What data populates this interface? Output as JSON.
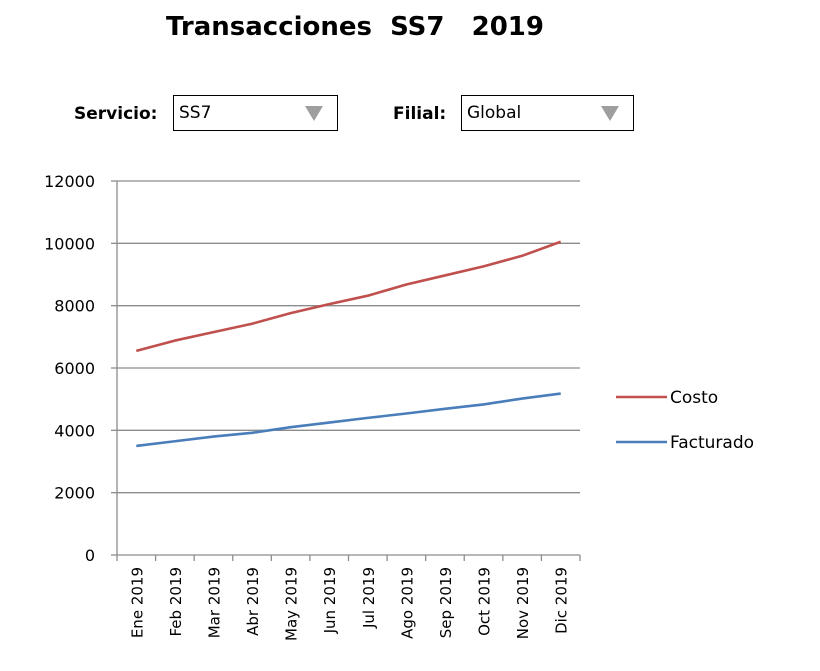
{
  "header": {
    "title": "Transacciones  SS7   2019"
  },
  "filters": {
    "servicio": {
      "label": "Servicio:",
      "value": "SS7",
      "arrow_icon": "triangle-down-icon"
    },
    "filial": {
      "label": "Filial:",
      "value": "Global",
      "arrow_icon": "triangle-down-icon"
    }
  },
  "chart_data": {
    "type": "line",
    "categories": [
      "Ene 2019",
      "Feb 2019",
      "Mar 2019",
      "Abr 2019",
      "May 2019",
      "Jun 2019",
      "Jul 2019",
      "Ago 2019",
      "Sep 2019",
      "Oct 2019",
      "Nov 2019",
      "Dic 2019"
    ],
    "series": [
      {
        "name": "Costo",
        "color": "#c0504d",
        "values": [
          6550,
          6880,
          7150,
          7420,
          7760,
          8050,
          8320,
          8680,
          8970,
          9260,
          9600,
          10050
        ]
      },
      {
        "name": "Facturado",
        "color": "#4a7ebb",
        "values": [
          3500,
          3650,
          3800,
          3920,
          4100,
          4250,
          4400,
          4540,
          4690,
          4830,
          5020,
          5180
        ]
      }
    ],
    "ylim": [
      0,
      12000
    ],
    "yticks": [
      0,
      2000,
      4000,
      6000,
      8000,
      10000,
      12000
    ],
    "grid": true,
    "legend": "right"
  }
}
